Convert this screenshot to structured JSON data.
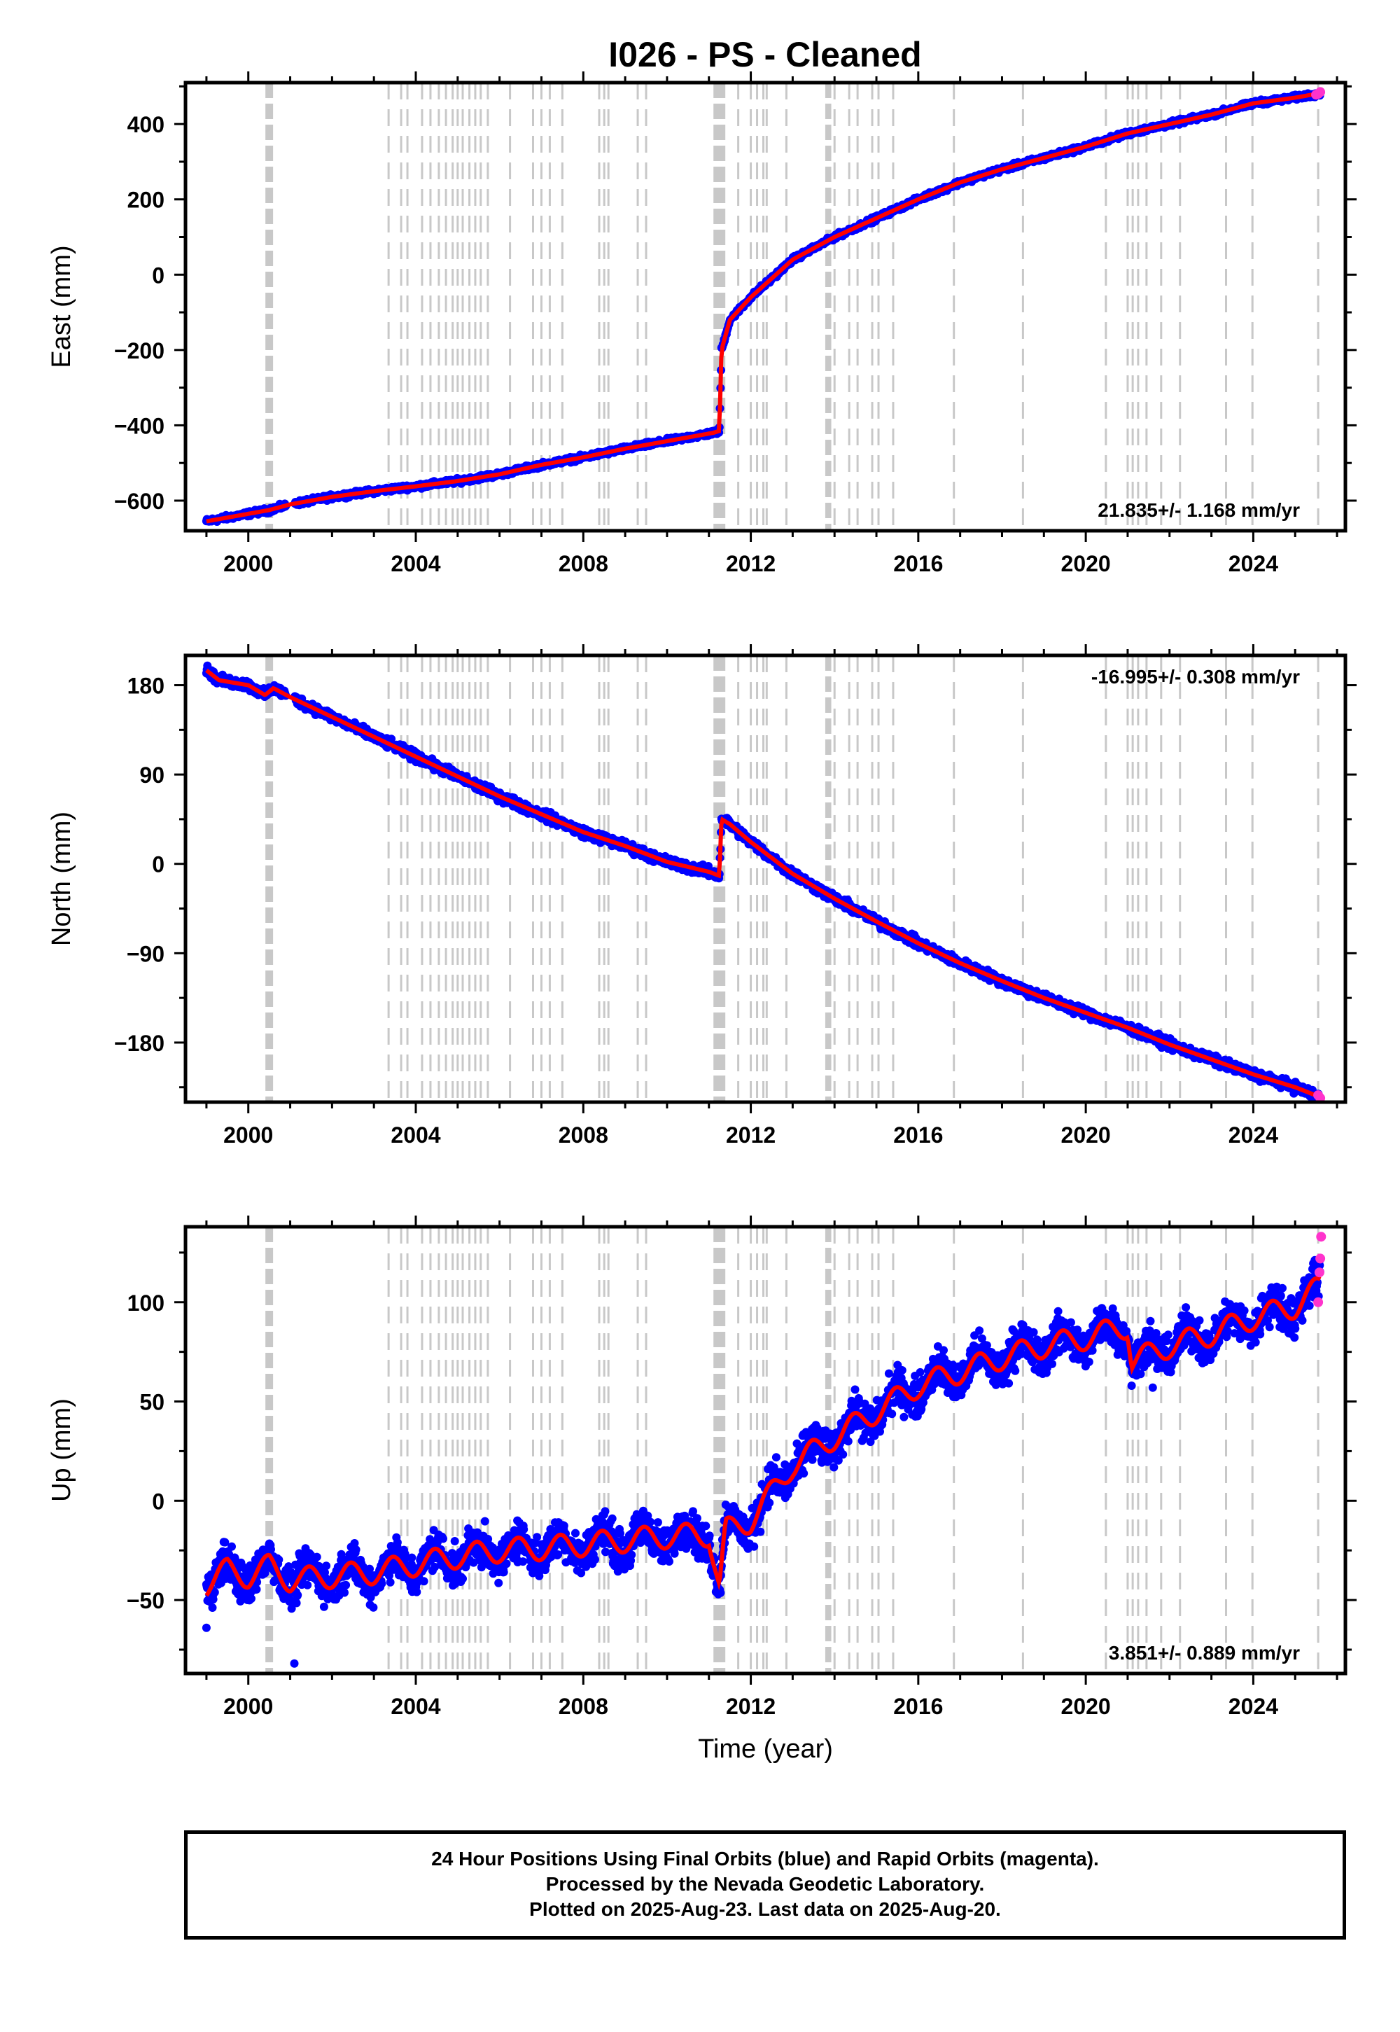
{
  "title": "I026  - PS - Cleaned",
  "caption": {
    "line1": "24 Hour Positions Using Final Orbits (blue) and Rapid Orbits (magenta).",
    "line2": "Processed by the Nevada Geodetic Laboratory.",
    "line3": "Plotted on 2025-Aug-23. Last data on 2025-Aug-20."
  },
  "colors": {
    "final_orbits": "#0000ff",
    "rapid_orbits": "#ff33cc",
    "model": "#ff0000",
    "event_lines": "#c8c8c8"
  },
  "chart_data": [
    {
      "type": "scatter",
      "title": "I026  - PS - Cleaned",
      "xlabel": "",
      "ylabel": "East (mm)",
      "xlim": [
        1998.5,
        2026.2
      ],
      "ylim": [
        -680,
        510
      ],
      "xticks": [
        2000,
        2004,
        2008,
        2012,
        2016,
        2020,
        2024
      ],
      "yticks": [
        -600,
        -400,
        -200,
        0,
        200,
        400
      ],
      "rate_label": "21.835+/- 1.168 mm/yr",
      "rate_position": "bottom-right",
      "series": [
        {
          "role": "final-orbits",
          "x": [
            1999.0,
            1999.5,
            2000.0,
            2000.5,
            2001.0,
            2002.0,
            2003.0,
            2004.0,
            2005.0,
            2006.0,
            2007.0,
            2008.0,
            2009.0,
            2010.0,
            2011.1,
            2011.25,
            2011.3,
            2011.5,
            2012.0,
            2012.5,
            2013.0,
            2014.0,
            2015.0,
            2016.0,
            2017.0,
            2018.0,
            2019.0,
            2020.0,
            2021.0,
            2022.0,
            2023.0,
            2024.0,
            2025.0,
            2025.6
          ],
          "y": [
            -655,
            -645,
            -635,
            -625,
            -610,
            -590,
            -575,
            -562,
            -548,
            -530,
            -505,
            -485,
            -462,
            -442,
            -420,
            -415,
            -200,
            -120,
            -60,
            -10,
            40,
            100,
            150,
            200,
            245,
            280,
            310,
            340,
            375,
            400,
            425,
            455,
            470,
            482
          ]
        },
        {
          "role": "rapid-orbits",
          "x": [
            2025.5,
            2025.55,
            2025.6
          ],
          "y": [
            478,
            480,
            485
          ]
        }
      ]
    },
    {
      "type": "scatter",
      "title": "",
      "xlabel": "",
      "ylabel": "North (mm)",
      "xlim": [
        1998.5,
        2026.2
      ],
      "ylim": [
        -240,
        210
      ],
      "xticks": [
        2000,
        2004,
        2008,
        2012,
        2016,
        2020,
        2024
      ],
      "yticks": [
        -180,
        -90,
        0,
        90,
        180
      ],
      "rate_label": "-16.995+/- 0.308 mm/yr",
      "rate_position": "top-right",
      "series": [
        {
          "role": "final-orbits",
          "x": [
            1999.0,
            1999.3,
            2000.0,
            2000.4,
            2000.6,
            2001.0,
            2002.0,
            2003.0,
            2004.0,
            2005.0,
            2006.0,
            2007.0,
            2008.0,
            2009.0,
            2010.0,
            2011.0,
            2011.25,
            2011.3,
            2011.5,
            2012.0,
            2013.0,
            2014.0,
            2015.0,
            2016.0,
            2017.0,
            2018.0,
            2019.0,
            2020.0,
            2021.0,
            2022.0,
            2023.0,
            2024.0,
            2025.0,
            2025.6
          ],
          "y": [
            195,
            185,
            180,
            170,
            177,
            168,
            148,
            128,
            108,
            88,
            68,
            50,
            32,
            18,
            2,
            -8,
            -12,
            45,
            40,
            22,
            -10,
            -35,
            -58,
            -80,
            -100,
            -118,
            -135,
            -150,
            -165,
            -182,
            -197,
            -212,
            -225,
            -235
          ]
        },
        {
          "role": "rapid-orbits",
          "x": [
            2025.55,
            2025.6
          ],
          "y": [
            -233,
            -236
          ]
        }
      ]
    },
    {
      "type": "scatter",
      "title": "",
      "xlabel": "Time (year)",
      "ylabel": "Up (mm)",
      "xlim": [
        1998.5,
        2026.2
      ],
      "ylim": [
        -87,
        138
      ],
      "xticks": [
        2000,
        2004,
        2008,
        2012,
        2016,
        2020,
        2024
      ],
      "yticks": [
        -50,
        0,
        50,
        100
      ],
      "rate_label": "3.851+/- 0.889 mm/yr",
      "rate_position": "bottom-right",
      "series": [
        {
          "role": "final-orbits",
          "x": [
            1999.0,
            1999.5,
            2000.0,
            2000.5,
            2001.0,
            2002.0,
            2003.0,
            2004.0,
            2005.0,
            2006.0,
            2007.0,
            2008.0,
            2009.0,
            2010.0,
            2011.0,
            2011.25,
            2011.4,
            2012.0,
            2013.0,
            2014.0,
            2015.0,
            2016.0,
            2017.0,
            2018.0,
            2019.0,
            2020.0,
            2021.0,
            2021.1,
            2022.0,
            2023.0,
            2024.0,
            2025.0,
            2025.6
          ],
          "y": [
            -42,
            -35,
            -38,
            -33,
            -40,
            -38,
            -36,
            -32,
            -28,
            -25,
            -24,
            -22,
            -20,
            -18,
            -17,
            -44,
            -15,
            -10,
            18,
            32,
            45,
            58,
            65,
            72,
            78,
            82,
            88,
            70,
            78,
            84,
            92,
            98,
            108
          ]
        },
        {
          "role": "rapid-orbits",
          "x": [
            2025.55,
            2025.58,
            2025.6,
            2025.62
          ],
          "y": [
            100,
            115,
            122,
            133
          ]
        }
      ]
    }
  ],
  "event_lines": {
    "dense": [
      2000.45,
      2000.5,
      2000.55,
      2011.15,
      2011.2,
      2011.25,
      2011.3,
      2011.35,
      2013.82,
      2013.88
    ],
    "single": [
      2003.35,
      2003.65,
      2003.8,
      2004.15,
      2004.35,
      2004.55,
      2004.72,
      2004.88,
      2005.0,
      2005.12,
      2005.28,
      2005.42,
      2005.55,
      2005.72,
      2006.25,
      2006.8,
      2007.0,
      2007.2,
      2007.5,
      2008.38,
      2008.5,
      2008.6,
      2009.3,
      2009.5,
      2011.7,
      2012.0,
      2012.15,
      2012.3,
      2012.38,
      2012.85,
      2014.0,
      2014.35,
      2014.55,
      2014.9,
      2015.05,
      2015.4,
      2016.85,
      2018.5,
      2020.48,
      2021.0,
      2021.12,
      2021.25,
      2021.45,
      2021.8,
      2022.25,
      2023.35,
      2023.98,
      2025.55
    ]
  }
}
